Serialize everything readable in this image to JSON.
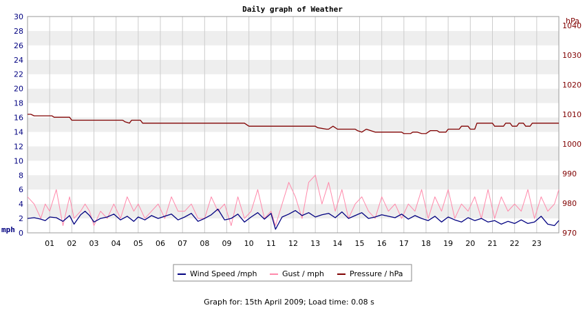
{
  "chart_data": {
    "type": "line",
    "title": "Daily graph of Weather",
    "left_axis": {
      "unit": "mph",
      "ylim": [
        0,
        30
      ],
      "ticks": [
        0,
        2,
        4,
        6,
        8,
        10,
        12,
        14,
        16,
        18,
        20,
        22,
        24,
        26,
        28,
        30
      ]
    },
    "right_axis": {
      "unit": "hPa",
      "ylim": [
        970,
        1043
      ],
      "ticks": [
        970,
        980,
        990,
        1000,
        1010,
        1020,
        1030,
        1040
      ]
    },
    "x_axis": {
      "unit": "hour",
      "xlim": [
        0,
        24
      ],
      "ticks": [
        "01",
        "02",
        "03",
        "04",
        "05",
        "06",
        "07",
        "08",
        "09",
        "10",
        "11",
        "12",
        "13",
        "14",
        "15",
        "16",
        "17",
        "18",
        "19",
        "20",
        "21",
        "22",
        "23"
      ]
    },
    "grid": true,
    "legend_position": "bottom",
    "series": [
      {
        "name": "Wind Speed /mph",
        "axis": "left",
        "color": "#000080",
        "x": [
          0,
          0.3,
          0.6,
          0.8,
          1,
          1.3,
          1.6,
          1.9,
          2.1,
          2.4,
          2.6,
          2.8,
          3,
          3.3,
          3.6,
          3.9,
          4.2,
          4.5,
          4.8,
          5,
          5.3,
          5.6,
          5.9,
          6.2,
          6.5,
          6.8,
          7.1,
          7.4,
          7.7,
          8,
          8.3,
          8.6,
          8.9,
          9.2,
          9.5,
          9.8,
          10.1,
          10.4,
          10.7,
          11,
          11.2,
          11.5,
          11.8,
          12.1,
          12.4,
          12.7,
          13,
          13.3,
          13.6,
          13.9,
          14.2,
          14.5,
          14.8,
          15.1,
          15.4,
          15.7,
          16,
          16.3,
          16.6,
          16.9,
          17.2,
          17.5,
          17.8,
          18.1,
          18.4,
          18.7,
          19,
          19.3,
          19.6,
          19.9,
          20.2,
          20.5,
          20.8,
          21.1,
          21.4,
          21.7,
          22,
          22.3,
          22.6,
          22.9,
          23.2,
          23.5,
          23.8,
          24
        ],
        "values": [
          2,
          2.1,
          1.9,
          1.7,
          2.2,
          2.1,
          1.6,
          2.4,
          1.2,
          2.5,
          3,
          2.4,
          1.5,
          2,
          2.2,
          2.6,
          1.8,
          2.3,
          1.6,
          2.2,
          1.8,
          2.4,
          2,
          2.3,
          2.6,
          1.8,
          2.2,
          2.7,
          1.6,
          2,
          2.5,
          3.3,
          1.8,
          2,
          2.6,
          1.5,
          2.2,
          2.8,
          1.9,
          2.7,
          0.5,
          2.2,
          2.6,
          3.1,
          2.4,
          2.8,
          2.2,
          2.5,
          2.7,
          2.1,
          2.9,
          2,
          2.4,
          2.8,
          2,
          2.2,
          2.5,
          2.3,
          2.1,
          2.6,
          1.9,
          2.4,
          2,
          1.7,
          2.3,
          1.5,
          2.2,
          1.8,
          1.5,
          2.1,
          1.7,
          2,
          1.5,
          1.7,
          1.2,
          1.6,
          1.3,
          1.8,
          1.3,
          1.5,
          2.3,
          1.2,
          1,
          1.7
        ]
      },
      {
        "name": "Gust / mph",
        "axis": "left",
        "color": "#ff88aa",
        "x": [
          0,
          0.3,
          0.6,
          0.8,
          1,
          1.3,
          1.6,
          1.9,
          2.1,
          2.4,
          2.6,
          2.8,
          3,
          3.3,
          3.6,
          3.9,
          4.2,
          4.5,
          4.8,
          5,
          5.3,
          5.6,
          5.9,
          6.2,
          6.5,
          6.8,
          7.1,
          7.4,
          7.7,
          8,
          8.3,
          8.6,
          8.9,
          9.2,
          9.5,
          9.8,
          10.1,
          10.4,
          10.7,
          11,
          11.2,
          11.5,
          11.8,
          12.1,
          12.4,
          12.7,
          13,
          13.3,
          13.6,
          13.9,
          14.2,
          14.5,
          14.8,
          15.1,
          15.4,
          15.7,
          16,
          16.3,
          16.6,
          16.9,
          17.2,
          17.5,
          17.8,
          18.1,
          18.4,
          18.7,
          19,
          19.3,
          19.6,
          19.9,
          20.2,
          20.5,
          20.8,
          21.1,
          21.4,
          21.7,
          22,
          22.3,
          22.6,
          22.9,
          23.2,
          23.5,
          23.8,
          24
        ],
        "values": [
          5,
          4,
          2,
          4,
          3,
          6,
          1,
          5,
          2,
          3,
          4,
          3,
          1,
          3,
          2,
          4,
          2,
          5,
          3,
          4,
          2,
          3,
          4,
          2,
          5,
          3,
          3,
          4,
          2,
          2,
          5,
          3,
          4,
          1,
          5,
          2,
          3,
          6,
          2,
          3,
          1,
          4,
          7,
          5,
          2,
          7,
          8,
          4,
          7,
          3,
          6,
          2,
          4,
          5,
          3,
          2,
          5,
          3,
          4,
          2,
          4,
          3,
          6,
          2,
          5,
          3,
          6,
          2,
          4,
          3,
          5,
          2,
          6,
          2,
          5,
          3,
          4,
          3,
          6,
          2,
          5,
          3,
          4,
          6
        ]
      },
      {
        "name": "Pressure / hPa",
        "axis": "right",
        "color": "#800000",
        "x": [
          0,
          0.15,
          0.3,
          1.1,
          1.2,
          1.9,
          2,
          4.3,
          4.4,
          4.6,
          4.7,
          5.1,
          5.2,
          9.8,
          10,
          13,
          13.1,
          13.5,
          13.6,
          13.8,
          14,
          14.8,
          14.9,
          15.1,
          15.3,
          15.5,
          15.7,
          16.9,
          17,
          17.3,
          17.4,
          17.6,
          17.8,
          18,
          18.2,
          18.5,
          18.6,
          18.9,
          19,
          19.5,
          19.6,
          19.9,
          20,
          20.2,
          20.3,
          21,
          21.1,
          21.5,
          21.6,
          21.8,
          21.9,
          22.1,
          22.2,
          22.4,
          22.5,
          22.7,
          22.8,
          24
        ],
        "values": [
          1010,
          1010,
          1009.5,
          1009.5,
          1009,
          1009,
          1008,
          1008,
          1007.5,
          1007,
          1008,
          1008,
          1007,
          1007,
          1006,
          1006,
          1005.5,
          1005,
          1005,
          1006,
          1005,
          1005,
          1004.5,
          1004,
          1005,
          1004.5,
          1004,
          1004,
          1003.5,
          1003.5,
          1004,
          1004,
          1003.5,
          1003.5,
          1004.5,
          1004.5,
          1004,
          1004,
          1005,
          1005,
          1006,
          1006,
          1005,
          1005,
          1007,
          1007,
          1006,
          1006,
          1007,
          1007,
          1006,
          1006,
          1007,
          1007,
          1006,
          1006,
          1007,
          1007
        ]
      }
    ]
  },
  "footer": "Graph for: 15th April 2009; Load time: 0.08 s"
}
